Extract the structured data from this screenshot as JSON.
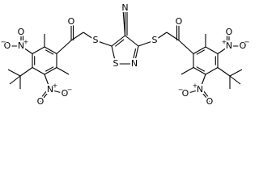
{
  "atoms": [
    "N",
    "S",
    "S",
    "S",
    "N",
    "O",
    "O",
    "N",
    "O",
    "O",
    "N",
    "O",
    "O",
    "N",
    "O",
    "O",
    "N",
    "O",
    "O"
  ],
  "charges": [
    "+",
    "−",
    "+",
    "−",
    "+",
    "−",
    "+",
    "−"
  ]
}
